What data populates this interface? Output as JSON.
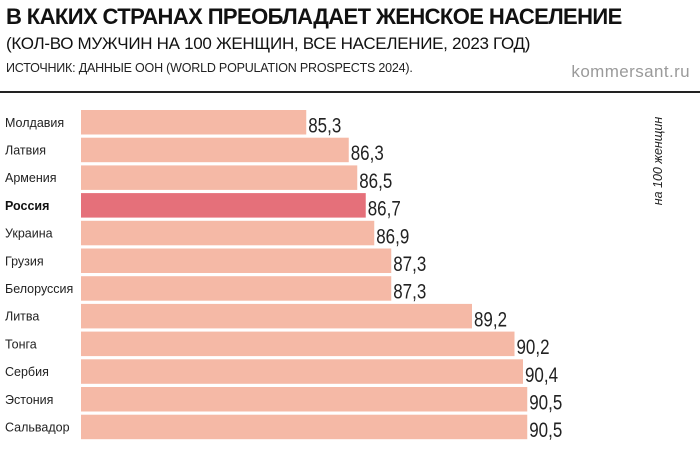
{
  "header": {
    "title": "В КАКИХ СТРАНАХ ПРЕОБЛАДАЕТ ЖЕНСКОЕ НАСЕЛЕНИЕ",
    "subtitle": "(КОЛ-ВО МУЖЧИН НА 100 ЖЕНЩИН, ВСЕ НАСЕЛЕНИЕ, 2023 ГОД)",
    "source": "ИСТОЧНИК: ДАННЫЕ ООН (WORLD POPULATION PROSPECTS 2024).",
    "brand": "kommersant.ru"
  },
  "chart_data": {
    "type": "bar",
    "orientation": "horizontal",
    "categories": [
      "Молдавия",
      "Латвия",
      "Армения",
      "Россия",
      "Украина",
      "Грузия",
      "Белоруссия",
      "Литва",
      "Тонга",
      "Сербия",
      "Эстония",
      "Сальвадор"
    ],
    "values": [
      85.3,
      86.3,
      86.5,
      86.7,
      86.9,
      87.3,
      87.3,
      89.2,
      90.2,
      90.4,
      90.5,
      90.5
    ],
    "value_labels": [
      "85,3",
      "86,3",
      "86,5",
      "86,7",
      "86,9",
      "87,3",
      "87,3",
      "89,2",
      "90,2",
      "90,4",
      "90,5",
      "90,5"
    ],
    "highlight": "Россия",
    "unit_label": "на 100 женщин",
    "colors": {
      "bar": "#f5b9a6",
      "highlight": "#e5707a",
      "text": "#222222"
    },
    "grid": false,
    "legend": "none"
  }
}
